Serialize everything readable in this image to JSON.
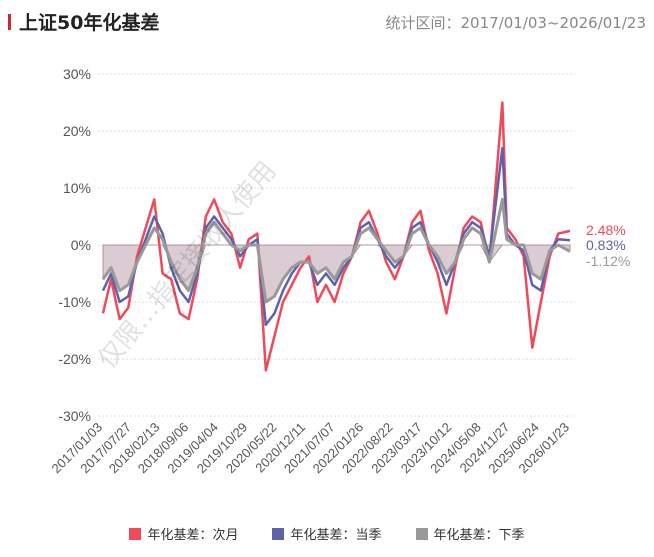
{
  "header": {
    "title": "上证50年化基差",
    "range": "统计区间：2017/01/03~2026/01/23"
  },
  "watermark": "仅限…指定接收人使用",
  "chart_data": {
    "type": "line",
    "ylim": [
      -30,
      30
    ],
    "yticks": [
      30,
      20,
      10,
      0,
      -10,
      -20,
      -30
    ],
    "ytick_labels": [
      "30%",
      "20%",
      "10%",
      "0%",
      "-10%",
      "-20%",
      "-30%"
    ],
    "grid": true,
    "xtick_labels": [
      "2017/01/03",
      "2017/07/27",
      "2018/02/13",
      "2018/09/06",
      "2019/04/04",
      "2019/10/29",
      "2020/05/22",
      "2020/12/11",
      "2021/07/07",
      "2022/01/26",
      "2022/08/22",
      "2023/03/17",
      "2023/10/12",
      "2024/05/08",
      "2024/11/27",
      "2025/06/24",
      "2026/01/23"
    ],
    "legend_position": "bottom",
    "x": [
      "2017/01/03",
      "2017/03/01",
      "2017/05/01",
      "2017/07/01",
      "2017/09/01",
      "2017/11/01",
      "2018/01/01",
      "2018/03/01",
      "2018/05/01",
      "2018/07/01",
      "2018/09/01",
      "2018/11/01",
      "2019/01/01",
      "2019/03/01",
      "2019/05/01",
      "2019/07/01",
      "2019/09/01",
      "2019/11/01",
      "2020/01/01",
      "2020/03/01",
      "2020/05/01",
      "2020/07/01",
      "2020/09/01",
      "2020/11/01",
      "2021/01/01",
      "2021/03/01",
      "2021/05/01",
      "2021/07/01",
      "2021/09/01",
      "2021/11/01",
      "2022/01/01",
      "2022/03/01",
      "2022/05/01",
      "2022/07/01",
      "2022/09/01",
      "2022/11/01",
      "2023/01/01",
      "2023/03/01",
      "2023/05/01",
      "2023/07/01",
      "2023/09/01",
      "2023/11/01",
      "2024/01/01",
      "2024/03/01",
      "2024/05/01",
      "2024/07/01",
      "2024/10/01",
      "2024/11/01",
      "2025/01/01",
      "2025/03/01",
      "2025/05/01",
      "2025/07/01",
      "2025/09/01",
      "2025/11/01",
      "2026/01/23"
    ],
    "series": [
      {
        "name": "年化基差：次月",
        "color": "#f04a5a",
        "end_label": "2.48%",
        "values": [
          -12,
          -6,
          -13,
          -11,
          -2,
          3,
          8,
          -5,
          -6,
          -12,
          -13,
          -6,
          5,
          8,
          4,
          2,
          -4,
          1,
          2,
          -22,
          -16,
          -10,
          -7,
          -4,
          -2,
          -10,
          -7,
          -10,
          -5,
          -2,
          4,
          6,
          2,
          -3,
          -6,
          -2,
          4,
          6,
          -1,
          -5,
          -12,
          -4,
          3,
          5,
          4,
          -3,
          25,
          3,
          1,
          -2,
          -18,
          -10,
          -2,
          2,
          2.48
        ]
      },
      {
        "name": "年化基差：当季",
        "color": "#5f62a8",
        "end_label": "0.83%",
        "values": [
          -8,
          -5,
          -10,
          -9,
          -3,
          1,
          5,
          2,
          -4,
          -8,
          -10,
          -5,
          3,
          5,
          3,
          1,
          -2,
          0,
          1,
          -14,
          -12,
          -8,
          -5,
          -3,
          -3,
          -7,
          -5,
          -7,
          -4,
          -2,
          3,
          4,
          1,
          -2,
          -4,
          -2,
          3,
          4,
          0,
          -3,
          -7,
          -3,
          2,
          4,
          3,
          -2,
          17,
          2,
          0,
          -1,
          -7,
          -8,
          -1,
          1,
          0.83
        ]
      },
      {
        "name": "年化基差：下季",
        "color": "#999999",
        "end_label": "-1.12%",
        "values": [
          -6,
          -4,
          -8,
          -7,
          -3,
          0,
          3,
          1,
          -3,
          -6,
          -8,
          -4,
          2,
          4,
          2,
          0,
          -1,
          0,
          0,
          -10,
          -9,
          -6,
          -4,
          -3,
          -3,
          -5,
          -4,
          -6,
          -3,
          -2,
          2,
          3,
          1,
          -1,
          -3,
          -2,
          2,
          3,
          0,
          -2,
          -5,
          -3,
          1,
          3,
          2,
          -3,
          8,
          1,
          0,
          0,
          -5,
          -6,
          -1,
          0,
          -1.12
        ]
      }
    ]
  }
}
